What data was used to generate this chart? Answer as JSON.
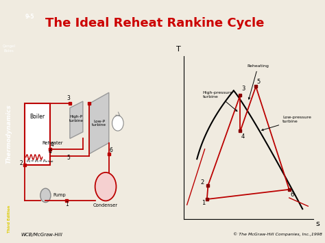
{
  "title": "The Ideal Reheat Rankine Cycle",
  "title_color": "#cc0000",
  "title_fontsize": 13,
  "bg_color": "#f0ebe0",
  "slide_num": "9-5",
  "footer_left": "WCB/McGraw-Hill",
  "footer_right": "© The McGraw-Hill Companies, Inc.,1998",
  "sidebar_text": "Thermodynamics",
  "sidebar_sub": "Third Edition",
  "sidebar_top": "Çengel\nBoles",
  "cycle_line_color": "#bb0000",
  "dome_color": "#000000",
  "point_color": "#880000",
  "sidebar_bg": "#1a3a6b",
  "sidebar_text_color": "#ffffff",
  "third_ed_color": "#ddcc00"
}
